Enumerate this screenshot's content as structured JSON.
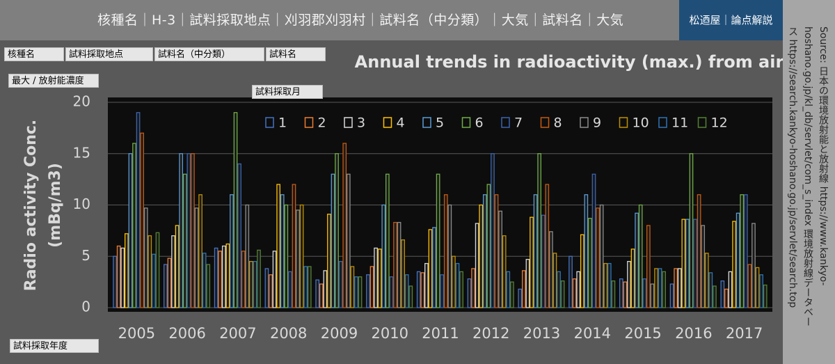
{
  "header": {
    "filter_text": "核種名｜H-3｜試料採取地点｜刈羽郡刈羽村｜試料名（中分類）｜大気｜試料名｜大気",
    "brand": "松迺屋｜論点解説"
  },
  "filters": {
    "nuclide": "核種名",
    "site": "試料採取地点",
    "sample_mid": "試料名（中分類）",
    "sample": "試料名",
    "measure": "最大 / 放射能濃度",
    "month": "試料採取月",
    "year": "試料採取年度"
  },
  "source": [
    "Source: 日本の環境放射能と放射線 https://www.kankyo-",
    "hoshano.go.jp/kl_db/servlet/com_s_index 環境放射線データベー",
    "ス https://search.kankyo-hoshano.go.jp/servlet/search.top"
  ],
  "chart_data": {
    "type": "bar",
    "title": "Annual trends in radioactivity (max.) from air",
    "y_label": [
      "Radio activity Conc.",
      "(mBq/m3)"
    ],
    "categories": [
      "2005",
      "2006",
      "2007",
      "2008",
      "2009",
      "2010",
      "2011",
      "2012",
      "2013",
      "2014",
      "2015",
      "2016",
      "2017"
    ],
    "ylim": [
      0,
      20
    ],
    "yticks": [
      0,
      5,
      10,
      15,
      20
    ],
    "grid": true,
    "series": [
      {
        "name": "1",
        "color": "#4472c4",
        "values": [
          5,
          4.2,
          5.8,
          3.8,
          2.7,
          3.2,
          3.5,
          2.8,
          1.8,
          5,
          2.8,
          2.3,
          2.6
        ]
      },
      {
        "name": "2",
        "color": "#ed7d31",
        "values": [
          6,
          4.8,
          5.5,
          3.2,
          2.3,
          4,
          3.4,
          3.8,
          3.6,
          2.8,
          2.5,
          3.8,
          1.8
        ]
      },
      {
        "name": "3",
        "color": "#d9d9d9",
        "values": [
          5.8,
          7,
          6,
          5.5,
          3.6,
          5.8,
          4.3,
          8.2,
          4.7,
          3.5,
          4.5,
          3.8,
          3.5
        ]
      },
      {
        "name": "4",
        "color": "#ffc000",
        "values": [
          7.2,
          8,
          6.2,
          12,
          9.1,
          5.7,
          7.6,
          10,
          8.8,
          7.1,
          5.7,
          8.6,
          8.4
        ]
      },
      {
        "name": "5",
        "color": "#5b9bd5",
        "values": [
          15,
          15,
          11,
          11,
          13,
          10,
          7.8,
          11,
          11,
          11,
          9.2,
          8.6,
          9.2
        ]
      },
      {
        "name": "6",
        "color": "#70ad47",
        "values": [
          16,
          13,
          19,
          10,
          15,
          13,
          13,
          12,
          15,
          8.7,
          10,
          15,
          11
        ]
      },
      {
        "name": "7",
        "color": "#3a64b0",
        "values": [
          19,
          15,
          14,
          3.5,
          4.5,
          3,
          3.2,
          15,
          9,
          13,
          2.8,
          8.6,
          11
        ]
      },
      {
        "name": "8",
        "color": "#c55a11",
        "values": [
          17,
          15,
          5.5,
          12,
          16,
          8.3,
          11,
          11,
          12,
          9.7,
          8,
          11,
          4.2
        ]
      },
      {
        "name": "9",
        "color": "#8c8c8c",
        "values": [
          9.7,
          9.7,
          10,
          9.5,
          13,
          8.3,
          10,
          9.4,
          7.4,
          10,
          2.3,
          8,
          8.2
        ]
      },
      {
        "name": "10",
        "color": "#bf9000",
        "values": [
          7,
          11,
          4.5,
          10,
          4,
          6.6,
          5,
          7,
          5.3,
          4.3,
          3.8,
          5.3,
          3.9
        ]
      },
      {
        "name": "11",
        "color": "#2e75b6",
        "values": [
          5.2,
          5.3,
          4.5,
          4,
          3,
          3.2,
          4.3,
          3.5,
          3.5,
          4.3,
          3.8,
          3.4,
          3.2
        ]
      },
      {
        "name": "12",
        "color": "#548235",
        "values": [
          7.3,
          4.2,
          5.6,
          4,
          3,
          2.1,
          3.5,
          2.5,
          2.6,
          2.6,
          3.5,
          2.1,
          2.2
        ]
      }
    ]
  }
}
